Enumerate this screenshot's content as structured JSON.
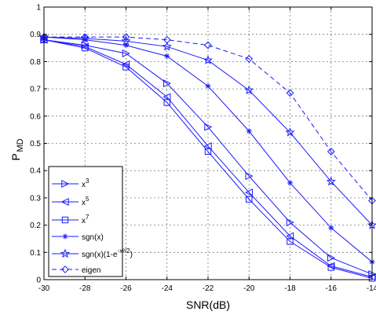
{
  "chart_data": {
    "type": "line",
    "xlabel": "SNR(dB)",
    "ylabel": "P",
    "ylabel_sub": "MD",
    "xlim": [
      -30,
      -14
    ],
    "ylim": [
      0,
      1
    ],
    "x_ticks": [
      -30,
      -28,
      -26,
      -24,
      -22,
      -20,
      -18,
      -16,
      -14
    ],
    "y_ticks": [
      0,
      0.1,
      0.2,
      0.3,
      0.4,
      0.5,
      0.6,
      0.7,
      0.8,
      0.9,
      1
    ],
    "grid": "dashed",
    "legend_position": "bottom-left",
    "x": [
      -30,
      -28,
      -26,
      -24,
      -22,
      -20,
      -18,
      -16,
      -14
    ],
    "series": [
      {
        "name": "x3",
        "legend_base": "x",
        "legend_sup": "3",
        "marker": "triangle-right",
        "line": "solid",
        "values": [
          0.88,
          0.86,
          0.83,
          0.72,
          0.56,
          0.38,
          0.21,
          0.08,
          0.02
        ]
      },
      {
        "name": "x5",
        "legend_base": "x",
        "legend_sup": "5",
        "marker": "triangle-left",
        "line": "solid",
        "values": [
          0.88,
          0.855,
          0.79,
          0.67,
          0.49,
          0.32,
          0.16,
          0.05,
          0.01
        ]
      },
      {
        "name": "x7",
        "legend_base": "x",
        "legend_sup": "7",
        "marker": "square",
        "line": "solid",
        "values": [
          0.88,
          0.85,
          0.78,
          0.65,
          0.47,
          0.295,
          0.14,
          0.045,
          0.005
        ]
      },
      {
        "name": "sgn(x)",
        "legend_base": "sgn(x)",
        "legend_sup": "",
        "marker": "asterisk",
        "line": "solid",
        "values": [
          0.89,
          0.88,
          0.86,
          0.82,
          0.71,
          0.545,
          0.355,
          0.19,
          0.065
        ]
      },
      {
        "name": "sgn(x)(1-e^(-x^2/2))",
        "legend_base": "sgn(x)(1-e",
        "legend_sup": "-x²/2",
        "legend_tail": ")",
        "marker": "star",
        "line": "solid",
        "values": [
          0.89,
          0.885,
          0.875,
          0.855,
          0.805,
          0.695,
          0.54,
          0.36,
          0.2
        ]
      },
      {
        "name": "eigen",
        "legend_base": "eigen",
        "legend_sup": "",
        "marker": "diamond",
        "line": "dashed",
        "values": [
          0.89,
          0.89,
          0.89,
          0.88,
          0.86,
          0.81,
          0.685,
          0.47,
          0.29
        ]
      }
    ],
    "colors": {
      "series": "#1a1aff",
      "axis": "#000000",
      "grid": "#7a7a7a"
    }
  }
}
